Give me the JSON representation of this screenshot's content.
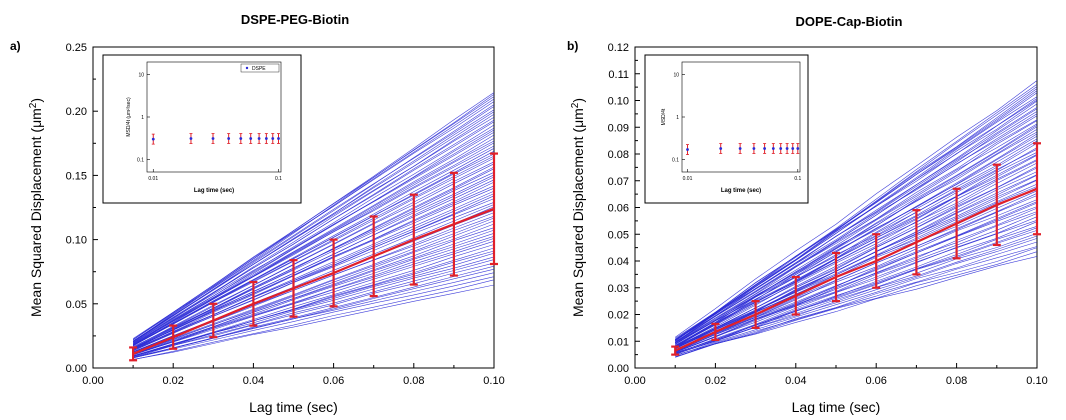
{
  "chart_data": [
    {
      "type": "line",
      "panel_label": "a)",
      "title": "DSPE-PEG-Biotin",
      "xlabel": "Lag time (sec)",
      "ylabel": "Mean Squared Displacement (μm",
      "ylabel_sup": "2",
      "ylabel_close": ")",
      "xlim": [
        0.0,
        0.1
      ],
      "ylim": [
        0.0,
        0.25
      ],
      "xticks": [
        "0.00",
        "0.02",
        "0.04",
        "0.06",
        "0.08",
        "0.10"
      ],
      "yticks": [
        "0.00",
        "0.05",
        "0.10",
        "0.15",
        "0.20",
        "0.25"
      ],
      "x": [
        0.01,
        0.02,
        0.03,
        0.04,
        0.05,
        0.06,
        0.07,
        0.08,
        0.09,
        0.1
      ],
      "trajectory_slope_range": [
        0.65,
        2.15
      ],
      "trajectory_count": 70,
      "trajectory_color": "#2b2bd6",
      "mean_series": {
        "color": "#e0202a",
        "values": [
          0.011,
          0.024,
          0.037,
          0.05,
          0.062,
          0.074,
          0.087,
          0.1,
          0.112,
          0.124
        ],
        "error": [
          0.005,
          0.009,
          0.013,
          0.017,
          0.022,
          0.026,
          0.031,
          0.035,
          0.04,
          0.043
        ]
      },
      "inset": {
        "xlabel": "Lag time (sec)",
        "ylabel": "MSD/4t (μm²/sec)",
        "legend": "DSPE",
        "yticks": [
          "10",
          "1",
          "0.1"
        ],
        "xticks": [
          "0.01",
          "0.1"
        ],
        "scale": "log-log",
        "values_y": [
          0.3,
          0.31,
          0.31,
          0.31,
          0.31,
          0.31,
          0.31,
          0.31,
          0.31,
          0.31
        ]
      }
    },
    {
      "type": "line",
      "panel_label": "b)",
      "title": "DOPE-Cap-Biotin",
      "xlabel": "Lag time (sec)",
      "ylabel": "Mean Squared Displacement (μm",
      "ylabel_sup": "2",
      "ylabel_close": ")",
      "xlim": [
        0.0,
        0.1
      ],
      "ylim": [
        0.0,
        0.12
      ],
      "xticks": [
        "0.00",
        "0.02",
        "0.04",
        "0.06",
        "0.08",
        "0.10"
      ],
      "yticks": [
        "0.00",
        "0.01",
        "0.02",
        "0.03",
        "0.04",
        "0.05",
        "0.06",
        "0.07",
        "0.08",
        "0.09",
        "0.10",
        "0.11",
        "0.12"
      ],
      "x": [
        0.01,
        0.02,
        0.03,
        0.04,
        0.05,
        0.06,
        0.07,
        0.08,
        0.09,
        0.1
      ],
      "trajectory_slope_range": [
        0.42,
        1.07
      ],
      "trajectory_count": 70,
      "trajectory_color": "#2b2bd6",
      "mean_series": {
        "color": "#e0202a",
        "values": [
          0.0065,
          0.0135,
          0.02,
          0.027,
          0.034,
          0.04,
          0.047,
          0.054,
          0.061,
          0.067
        ],
        "error": [
          0.0015,
          0.003,
          0.005,
          0.007,
          0.009,
          0.01,
          0.012,
          0.013,
          0.015,
          0.017
        ]
      },
      "inset": {
        "xlabel": "Lag time (sec)",
        "ylabel": "MSD/4t",
        "yticks": [
          "10",
          "1",
          "0.1"
        ],
        "xticks": [
          "0.01",
          "0.1"
        ],
        "scale": "log-log",
        "values_y": [
          0.17,
          0.18,
          0.18,
          0.18,
          0.18,
          0.18,
          0.18,
          0.18,
          0.18,
          0.18
        ]
      }
    }
  ]
}
